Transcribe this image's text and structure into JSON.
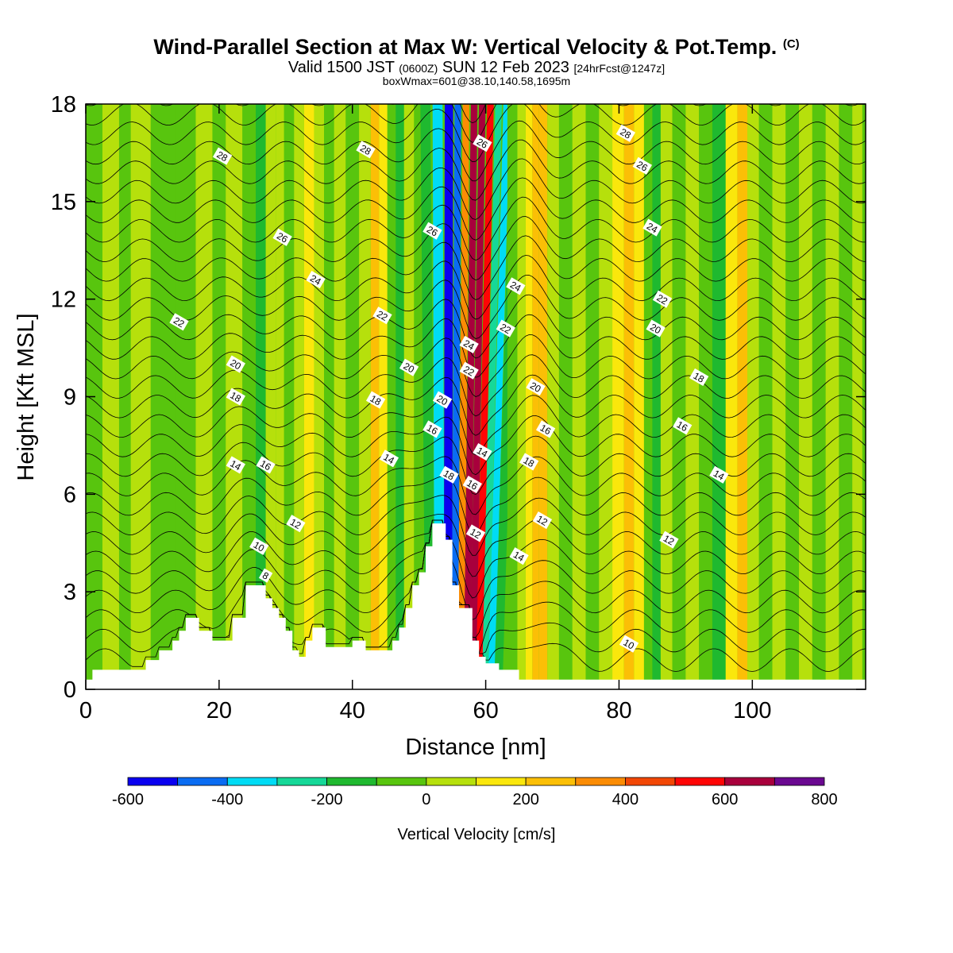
{
  "header": {
    "title": "Wind-Parallel Section at Max W: Vertical Velocity & Pot.Temp.",
    "copyright": "(C)",
    "subtitle_main": "Valid 1500 JST",
    "subtitle_utc": "(0600Z)",
    "subtitle_date": "SUN 12 Feb 2023",
    "subtitle_fcst": "[24hrFcst@1247z]",
    "subtitle_box": "boxWmax=601@38.10,140.58,1695m"
  },
  "chart_data": {
    "type": "heatmap",
    "xlabel": "Distance [nm]",
    "ylabel": "Height [Kft MSL]",
    "xlim": [
      0,
      117
    ],
    "ylim": [
      0,
      18
    ],
    "x_ticks": [
      0,
      20,
      40,
      60,
      80,
      100
    ],
    "y_ticks": [
      0,
      3,
      6,
      9,
      12,
      15,
      18
    ],
    "colorbar": {
      "label": "Vertical Velocity [cm/s]",
      "bounds": [
        -600,
        -500,
        -400,
        -300,
        -200,
        -100,
        0,
        100,
        200,
        300,
        400,
        500,
        600,
        700,
        800
      ],
      "tick_labels": [
        "-600",
        "-400",
        "-200",
        "0",
        "200",
        "400",
        "600",
        "800"
      ],
      "colors": [
        "#0a00f0",
        "#0a6cf2",
        "#00dcf5",
        "#16d898",
        "#1fb92f",
        "#58c50e",
        "#b6e00c",
        "#fae70c",
        "#fbbf06",
        "#fb8c04",
        "#f24705",
        "#ff0505",
        "#a8003c",
        "#6a0890"
      ]
    },
    "terrain_profile_kft": {
      "x": [
        0,
        1,
        5,
        9,
        11,
        13,
        14,
        15,
        16,
        17,
        19,
        21,
        22,
        24,
        25,
        27,
        28,
        29,
        30,
        31,
        32,
        33,
        34,
        35,
        36,
        38,
        40,
        41,
        42,
        44,
        46,
        47,
        48,
        49,
        50,
        51,
        52,
        53,
        54,
        55,
        56,
        58,
        59,
        60,
        62,
        64,
        65,
        117
      ],
      "h": [
        0.3,
        0.6,
        0.6,
        0.9,
        1.2,
        1.5,
        1.8,
        2.2,
        2.2,
        1.8,
        1.5,
        1.5,
        2.2,
        3.2,
        3.2,
        2.8,
        2.5,
        2.2,
        1.8,
        1.2,
        1.0,
        1.5,
        1.9,
        1.9,
        1.3,
        1.3,
        1.5,
        1.5,
        1.2,
        1.2,
        1.5,
        1.9,
        2.5,
        3.2,
        3.6,
        4.4,
        5.1,
        5.1,
        4.6,
        3.2,
        2.5,
        1.5,
        1.0,
        0.8,
        0.6,
        0.6,
        0.3,
        0.3
      ]
    },
    "contours": {
      "variable": "Potential temperature",
      "units": "C",
      "levels": [
        8,
        10,
        12,
        14,
        16,
        18,
        20,
        22,
        24,
        26,
        28
      ],
      "labels": [
        {
          "text": "28",
          "x": 20.5,
          "y": 16.4
        },
        {
          "text": "28",
          "x": 42,
          "y": 16.6
        },
        {
          "text": "26",
          "x": 29.5,
          "y": 13.9
        },
        {
          "text": "24",
          "x": 34.5,
          "y": 12.6
        },
        {
          "text": "22",
          "x": 14,
          "y": 11.3
        },
        {
          "text": "22",
          "x": 44.5,
          "y": 11.5
        },
        {
          "text": "20",
          "x": 22.5,
          "y": 10.0
        },
        {
          "text": "20",
          "x": 48.5,
          "y": 9.9
        },
        {
          "text": "18",
          "x": 22.5,
          "y": 9.0
        },
        {
          "text": "18",
          "x": 43.5,
          "y": 8.9
        },
        {
          "text": "14",
          "x": 22.5,
          "y": 6.9
        },
        {
          "text": "16",
          "x": 27,
          "y": 6.9
        },
        {
          "text": "14",
          "x": 45.5,
          "y": 7.1
        },
        {
          "text": "12",
          "x": 31.5,
          "y": 5.1
        },
        {
          "text": "10",
          "x": 26,
          "y": 4.4
        },
        {
          "text": "8",
          "x": 27,
          "y": 3.5
        },
        {
          "text": "26",
          "x": 52,
          "y": 14.1
        },
        {
          "text": "20",
          "x": 53.5,
          "y": 8.9
        },
        {
          "text": "16",
          "x": 52,
          "y": 8.0
        },
        {
          "text": "18",
          "x": 54.5,
          "y": 6.6
        },
        {
          "text": "26",
          "x": 59.5,
          "y": 16.8
        },
        {
          "text": "24",
          "x": 57.5,
          "y": 10.6
        },
        {
          "text": "22",
          "x": 57.5,
          "y": 9.8
        },
        {
          "text": "16",
          "x": 58,
          "y": 6.3
        },
        {
          "text": "14",
          "x": 59.5,
          "y": 7.3
        },
        {
          "text": "12",
          "x": 58.5,
          "y": 4.8
        },
        {
          "text": "24",
          "x": 64.5,
          "y": 12.4
        },
        {
          "text": "22",
          "x": 63,
          "y": 11.1
        },
        {
          "text": "20",
          "x": 67.5,
          "y": 9.3
        },
        {
          "text": "16",
          "x": 69,
          "y": 8.0
        },
        {
          "text": "18",
          "x": 66.5,
          "y": 7.0
        },
        {
          "text": "12",
          "x": 68.5,
          "y": 5.2
        },
        {
          "text": "14",
          "x": 65,
          "y": 4.1
        },
        {
          "text": "28",
          "x": 81,
          "y": 17.1
        },
        {
          "text": "26",
          "x": 83.5,
          "y": 16.1
        },
        {
          "text": "24",
          "x": 85,
          "y": 14.2
        },
        {
          "text": "22",
          "x": 86.5,
          "y": 12.0
        },
        {
          "text": "20",
          "x": 85.5,
          "y": 11.1
        },
        {
          "text": "18",
          "x": 92,
          "y": 9.6
        },
        {
          "text": "16",
          "x": 89.5,
          "y": 8.1
        },
        {
          "text": "14",
          "x": 95,
          "y": 6.6
        },
        {
          "text": "12",
          "x": 87.5,
          "y": 4.6
        },
        {
          "text": "10",
          "x": 81.5,
          "y": 1.4
        }
      ]
    },
    "vertical_velocity_bands": [
      {
        "x": 1,
        "value": -50
      },
      {
        "x": 4,
        "value": 50
      },
      {
        "x": 6,
        "value": -50
      },
      {
        "x": 7.5,
        "value": 60
      },
      {
        "x": 12,
        "value": -40
      },
      {
        "x": 15,
        "value": -60
      },
      {
        "x": 18,
        "value": 40
      },
      {
        "x": 20,
        "value": -50
      },
      {
        "x": 22,
        "value": 50
      },
      {
        "x": 25,
        "value": -60
      },
      {
        "x": 26,
        "value": -120
      },
      {
        "x": 28,
        "value": 40
      },
      {
        "x": 29,
        "value": 90
      },
      {
        "x": 30.5,
        "value": -70
      },
      {
        "x": 32,
        "value": 60
      },
      {
        "x": 33.5,
        "value": 150
      },
      {
        "x": 35,
        "value": 50
      },
      {
        "x": 36.5,
        "value": -70
      },
      {
        "x": 38,
        "value": 40
      },
      {
        "x": 40,
        "value": -50
      },
      {
        "x": 42,
        "value": 60
      },
      {
        "x": 43.5,
        "value": 200
      },
      {
        "x": 44.5,
        "value": 110
      },
      {
        "x": 46,
        "value": -70
      },
      {
        "x": 47,
        "value": -120
      },
      {
        "x": 48.5,
        "value": 40
      },
      {
        "x": 50,
        "value": -60
      },
      {
        "x": 51.5,
        "value": -170
      },
      {
        "x": 53,
        "value": -320
      },
      {
        "x": 54.5,
        "value": -570
      },
      {
        "x": 55.5,
        "value": -420
      },
      {
        "x": 56.5,
        "value": 320
      },
      {
        "x": 57.5,
        "value": 620
      },
      {
        "x": 58.5,
        "value": 690
      },
      {
        "x": 59.5,
        "value": 560
      },
      {
        "x": 60.5,
        "value": -250
      },
      {
        "x": 61.5,
        "value": -350
      },
      {
        "x": 62.5,
        "value": -170
      },
      {
        "x": 64,
        "value": -60
      },
      {
        "x": 65.5,
        "value": 60
      },
      {
        "x": 66.5,
        "value": 150
      },
      {
        "x": 67.5,
        "value": 260
      },
      {
        "x": 68.5,
        "value": 210
      },
      {
        "x": 70,
        "value": 60
      },
      {
        "x": 72,
        "value": -60
      },
      {
        "x": 74,
        "value": 50
      },
      {
        "x": 76,
        "value": -60
      },
      {
        "x": 78,
        "value": 40
      },
      {
        "x": 80,
        "value": 120
      },
      {
        "x": 81.5,
        "value": 240
      },
      {
        "x": 83,
        "value": 110
      },
      {
        "x": 84.5,
        "value": -70
      },
      {
        "x": 85.5,
        "value": -140
      },
      {
        "x": 87,
        "value": 50
      },
      {
        "x": 89,
        "value": -50
      },
      {
        "x": 91,
        "value": 60
      },
      {
        "x": 93,
        "value": -60
      },
      {
        "x": 95,
        "value": -120
      },
      {
        "x": 97,
        "value": 110
      },
      {
        "x": 98.5,
        "value": 220
      },
      {
        "x": 100,
        "value": 50
      },
      {
        "x": 102,
        "value": -60
      },
      {
        "x": 104,
        "value": 50
      },
      {
        "x": 106,
        "value": -70
      },
      {
        "x": 108,
        "value": 50
      },
      {
        "x": 110,
        "value": -60
      },
      {
        "x": 112,
        "value": 40
      },
      {
        "x": 114,
        "value": -50
      },
      {
        "x": 116,
        "value": 50
      }
    ]
  }
}
